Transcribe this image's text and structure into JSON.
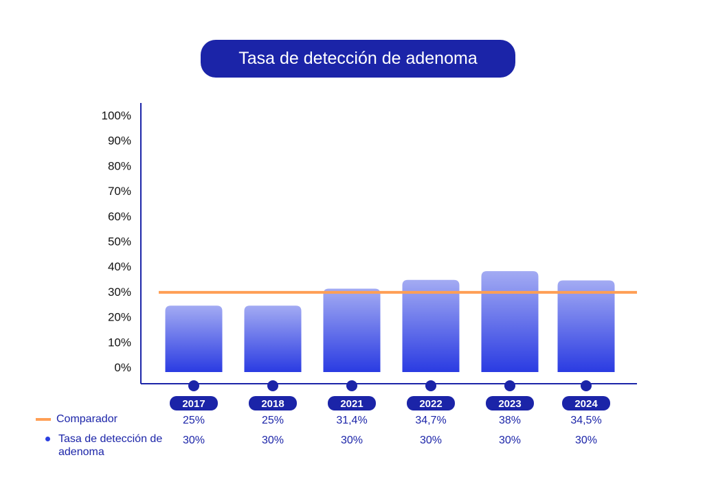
{
  "chart_data": {
    "type": "bar",
    "title": "Tasa de detección de adenoma",
    "categories": [
      "2017",
      "2018",
      "2021",
      "2022",
      "2023",
      "2024"
    ],
    "series": [
      {
        "name": "Tasa de detección de adenoma",
        "values": [
          25,
          25,
          31.4,
          34.7,
          38,
          34.5
        ],
        "labels": [
          "25%",
          "25%",
          "31,4%",
          "34,7%",
          "38%",
          "34,5%"
        ]
      },
      {
        "name": "Comparador",
        "values": [
          30,
          30,
          30,
          30,
          30,
          30
        ],
        "labels": [
          "30%",
          "30%",
          "30%",
          "30%",
          "30%",
          "30%"
        ]
      }
    ],
    "ylim": [
      0,
      100
    ],
    "yticks": [
      "0%",
      "10%",
      "20%",
      "30%",
      "40%",
      "50%",
      "60%",
      "70%",
      "80%",
      "90%",
      "100%"
    ],
    "xlabel": "",
    "ylabel": "",
    "grid": false,
    "legend": [
      {
        "label": "Comparador",
        "marker": "line",
        "color": "#ff9f55"
      },
      {
        "label": "Tasa de detección de adenoma",
        "marker": "dot",
        "color": "#2b3fe0"
      }
    ],
    "legend_placement": "bottom-left",
    "colors": {
      "bar_top": "#a3abf3",
      "bar_bottom": "#2a3be2",
      "comparator": "#ff9f55",
      "axis": "#1b24a8",
      "title_bg": "#1b24a8"
    }
  }
}
